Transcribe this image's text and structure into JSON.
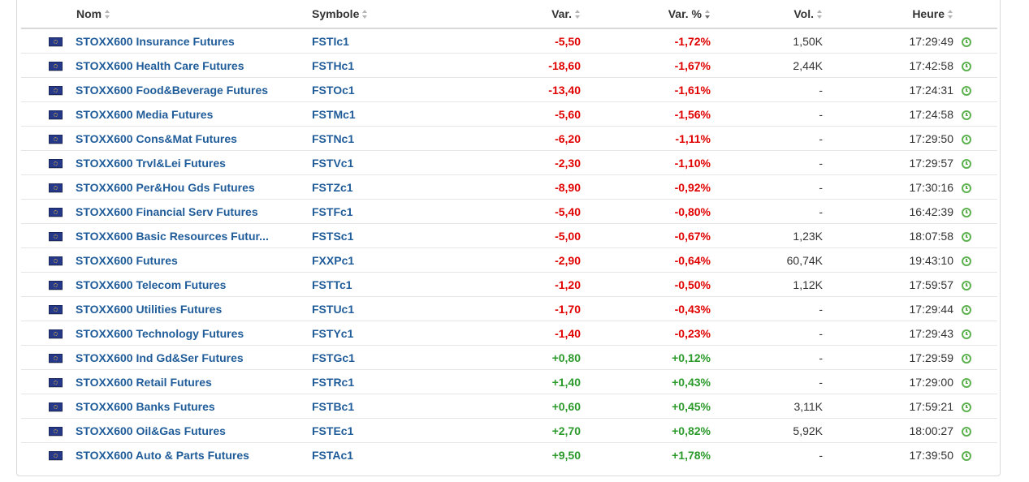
{
  "columns": {
    "name": "Nom",
    "symbol": "Symbole",
    "change": "Var.",
    "change_pct": "Var. %",
    "volume": "Vol.",
    "time": "Heure"
  },
  "sorted_column": "change_pct",
  "colors": {
    "negative": "#e00000",
    "positive": "#2b9a2b",
    "link": "#1f5c99",
    "clock": "#5db14f"
  },
  "icons": {
    "flag": "eu-flag-icon",
    "status": "clock-icon",
    "sort": "sort-arrows-icon"
  },
  "rows": [
    {
      "name": "STOXX600 Insurance Futures",
      "symbol": "FSTIc1",
      "change": "-5,50",
      "change_pct": "-1,72%",
      "volume": "1,50K",
      "time": "17:29:49",
      "dir": "neg"
    },
    {
      "name": "STOXX600 Health Care Futures",
      "symbol": "FSTHc1",
      "change": "-18,60",
      "change_pct": "-1,67%",
      "volume": "2,44K",
      "time": "17:42:58",
      "dir": "neg"
    },
    {
      "name": "STOXX600 Food&Beverage Futures",
      "symbol": "FSTOc1",
      "change": "-13,40",
      "change_pct": "-1,61%",
      "volume": "-",
      "time": "17:24:31",
      "dir": "neg"
    },
    {
      "name": "STOXX600 Media Futures",
      "symbol": "FSTMc1",
      "change": "-5,60",
      "change_pct": "-1,56%",
      "volume": "-",
      "time": "17:24:58",
      "dir": "neg"
    },
    {
      "name": "STOXX600 Cons&Mat Futures",
      "symbol": "FSTNc1",
      "change": "-6,20",
      "change_pct": "-1,11%",
      "volume": "-",
      "time": "17:29:50",
      "dir": "neg"
    },
    {
      "name": "STOXX600 Trvl&Lei Futures",
      "symbol": "FSTVc1",
      "change": "-2,30",
      "change_pct": "-1,10%",
      "volume": "-",
      "time": "17:29:57",
      "dir": "neg"
    },
    {
      "name": "STOXX600 Per&Hou Gds Futures",
      "symbol": "FSTZc1",
      "change": "-8,90",
      "change_pct": "-0,92%",
      "volume": "-",
      "time": "17:30:16",
      "dir": "neg"
    },
    {
      "name": "STOXX600 Financial Serv Futures",
      "symbol": "FSTFc1",
      "change": "-5,40",
      "change_pct": "-0,80%",
      "volume": "-",
      "time": "16:42:39",
      "dir": "neg"
    },
    {
      "name": "STOXX600 Basic Resources Futur...",
      "symbol": "FSTSc1",
      "change": "-5,00",
      "change_pct": "-0,67%",
      "volume": "1,23K",
      "time": "18:07:58",
      "dir": "neg"
    },
    {
      "name": "STOXX600 Futures",
      "symbol": "FXXPc1",
      "change": "-2,90",
      "change_pct": "-0,64%",
      "volume": "60,74K",
      "time": "19:43:10",
      "dir": "neg"
    },
    {
      "name": "STOXX600 Telecom Futures",
      "symbol": "FSTTc1",
      "change": "-1,20",
      "change_pct": "-0,50%",
      "volume": "1,12K",
      "time": "17:59:57",
      "dir": "neg"
    },
    {
      "name": "STOXX600 Utilities Futures",
      "symbol": "FSTUc1",
      "change": "-1,70",
      "change_pct": "-0,43%",
      "volume": "-",
      "time": "17:29:44",
      "dir": "neg"
    },
    {
      "name": "STOXX600 Technology Futures",
      "symbol": "FSTYc1",
      "change": "-1,40",
      "change_pct": "-0,23%",
      "volume": "-",
      "time": "17:29:43",
      "dir": "neg"
    },
    {
      "name": "STOXX600 Ind Gd&Ser Futures",
      "symbol": "FSTGc1",
      "change": "+0,80",
      "change_pct": "+0,12%",
      "volume": "-",
      "time": "17:29:59",
      "dir": "pos"
    },
    {
      "name": "STOXX600 Retail Futures",
      "symbol": "FSTRc1",
      "change": "+1,40",
      "change_pct": "+0,43%",
      "volume": "-",
      "time": "17:29:00",
      "dir": "pos"
    },
    {
      "name": "STOXX600 Banks Futures",
      "symbol": "FSTBc1",
      "change": "+0,60",
      "change_pct": "+0,45%",
      "volume": "3,11K",
      "time": "17:59:21",
      "dir": "pos"
    },
    {
      "name": "STOXX600 Oil&Gas Futures",
      "symbol": "FSTEc1",
      "change": "+2,70",
      "change_pct": "+0,82%",
      "volume": "5,92K",
      "time": "18:00:27",
      "dir": "pos"
    },
    {
      "name": "STOXX600 Auto & Parts Futures",
      "symbol": "FSTAc1",
      "change": "+9,50",
      "change_pct": "+1,78%",
      "volume": "-",
      "time": "17:39:50",
      "dir": "pos"
    }
  ]
}
